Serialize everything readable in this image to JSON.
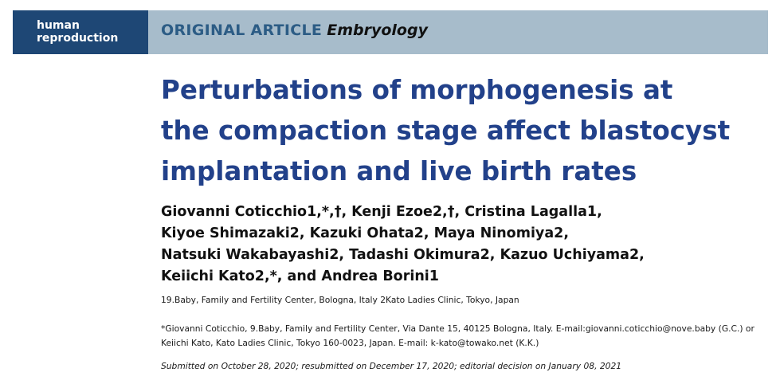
{
  "journal": {
    "name_line1": "human",
    "name_line2": "reproduction",
    "article_type": "ORIGINAL ARTICLE",
    "section": "Embryology",
    "bar_color": "#a7bccb",
    "logo_color": "#1e4775"
  },
  "title": {
    "lines": [
      "Perturbations of morphogenesis at",
      "the compaction stage affect blastocyst",
      "implantation and live birth rates"
    ],
    "color": "#22418a"
  },
  "authors": {
    "lines": [
      "Giovanni Coticchio1,*,†, Kenji Ezoe2,†, Cristina Lagalla1,",
      "Kiyoe Shimazaki2, Kazuki Ohata2, Maya Ninomiya2,",
      "Natsuki Wakabayashi2, Tadashi Okimura2, Kazuo Uchiyama2,",
      "Keiichi Kato2,*, and Andrea Borini1"
    ]
  },
  "affiliations": "19.Baby, Family and Fertility Center, Bologna, Italy 2Kato Ladies Clinic, Tokyo, Japan",
  "correspondence": {
    "lines": [
      "*Giovanni Coticchio, 9.Baby, Family and Fertility Center, Via Dante 15, 40125 Bologna, Italy. E-mail:giovanni.coticchio@nove.baby (G.C.) or",
      "Keiichi Kato, Kato Ladies Clinic, Tokyo 160-0023, Japan. E-mail: k-kato@towako.net (K.K.)"
    ]
  },
  "dates": "Submitted on October 28, 2020; resubmitted on December 17, 2020; editorial decision on January 08, 2021"
}
